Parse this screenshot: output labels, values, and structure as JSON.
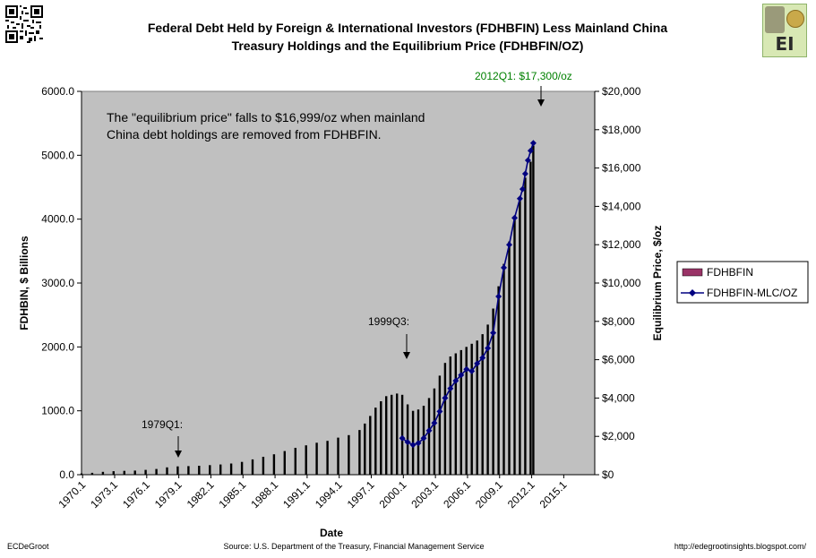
{
  "footer": {
    "left": "ECDeGroot",
    "source": "Source:  U.S. Department of the Treasury, Financial Management Service",
    "url": "http://edegrootinsights.blogspot.com/"
  },
  "logo": {
    "text": "EI"
  },
  "colors": {
    "plot_background": "#c0c0c0",
    "bar": "#000000",
    "line": "#000080",
    "legend_bar_fill": "#993366",
    "title": "#000000",
    "peak_annotation": "#008000"
  },
  "annotations": {
    "note_line1": "The \"equilibrium price\" falls to $16,999/oz when mainland",
    "note_line2": "China debt holdings are removed from FDHBFIN.",
    "a1979": "1979Q1:",
    "a1999": "1999Q3:",
    "a2012": "2012Q1: $17,300/oz"
  },
  "chart_data": {
    "type": "bar",
    "title": "Federal Debt Held by Foreign & International Investors (FDHBFIN) Less Mainland China Treasury Holdings and the Equilibrium Price (FDHBFIN/OZ)",
    "title_lines": [
      "Federal Debt Held by Foreign & International Investors (FDHBFIN) Less Mainland China",
      "Treasury Holdings and the Equilibrium Price (FDHBFIN/OZ)"
    ],
    "xlabel": "Date",
    "ylabel": "FDHBIN, $ Billions",
    "y2label": "Equilibrium Price, $/oz",
    "ylim": [
      0,
      6000
    ],
    "y2lim": [
      0,
      20000
    ],
    "y_ticks": [
      "0.0",
      "1000.0",
      "2000.0",
      "3000.0",
      "4000.0",
      "5000.0",
      "6000.0"
    ],
    "y2_ticks": [
      "$0",
      "$2,000",
      "$4,000",
      "$6,000",
      "$8,000",
      "$10,000",
      "$12,000",
      "$14,000",
      "$16,000",
      "$18,000",
      "$20,000"
    ],
    "x_ticks": [
      "1970.1",
      "1973.1",
      "1976.1",
      "1979.1",
      "1982.1",
      "1985.1",
      "1988.1",
      "1991.1",
      "1994.1",
      "1997.1",
      "2000.1",
      "2003.1",
      "2006.1",
      "2009.1",
      "2012.1",
      "2015.1"
    ],
    "x_range": [
      1970.0,
      2018.0
    ],
    "grid": false,
    "legend_position": "right",
    "series": [
      {
        "name": "FDHBFIN",
        "kind": "bar",
        "axis": "left",
        "x": [
          1970.0,
          1971.0,
          1972.0,
          1973.0,
          1974.0,
          1975.0,
          1976.0,
          1977.0,
          1978.0,
          1979.0,
          1980.0,
          1981.0,
          1982.0,
          1983.0,
          1984.0,
          1985.0,
          1986.0,
          1987.0,
          1988.0,
          1989.0,
          1990.0,
          1991.0,
          1992.0,
          1993.0,
          1994.0,
          1995.0,
          1996.0,
          1996.5,
          1997.0,
          1997.5,
          1998.0,
          1998.5,
          1999.0,
          1999.5,
          2000.0,
          2000.5,
          2001.0,
          2001.5,
          2002.0,
          2002.5,
          2003.0,
          2003.5,
          2004.0,
          2004.5,
          2005.0,
          2005.5,
          2006.0,
          2006.5,
          2007.0,
          2007.5,
          2008.0,
          2008.5,
          2009.0,
          2009.5,
          2010.0,
          2010.5,
          2011.0,
          2011.5,
          2012.0,
          2012.25
        ],
        "values": [
          20,
          30,
          45,
          55,
          60,
          65,
          75,
          90,
          115,
          130,
          135,
          140,
          150,
          160,
          175,
          200,
          240,
          280,
          320,
          370,
          420,
          460,
          500,
          530,
          580,
          620,
          700,
          800,
          920,
          1050,
          1150,
          1230,
          1250,
          1270,
          1250,
          1100,
          1000,
          1020,
          1080,
          1200,
          1350,
          1550,
          1750,
          1850,
          1900,
          1950,
          2000,
          2050,
          2100,
          2200,
          2350,
          2600,
          2950,
          3300,
          3650,
          4000,
          4350,
          4650,
          4900,
          5150
        ]
      },
      {
        "name": "FDHBFIN-MLC/OZ",
        "kind": "line",
        "axis": "right",
        "x": [
          2000.0,
          2000.5,
          2001.0,
          2001.5,
          2002.0,
          2002.5,
          2003.0,
          2003.5,
          2004.0,
          2004.5,
          2005.0,
          2005.5,
          2006.0,
          2006.5,
          2007.0,
          2007.5,
          2008.0,
          2008.5,
          2009.0,
          2009.5,
          2010.0,
          2010.5,
          2011.0,
          2011.25,
          2011.5,
          2011.75,
          2012.0,
          2012.25
        ],
        "values": [
          1900,
          1700,
          1550,
          1650,
          1900,
          2300,
          2700,
          3300,
          4000,
          4500,
          4900,
          5200,
          5500,
          5400,
          5800,
          6100,
          6600,
          7400,
          9300,
          10800,
          12000,
          13400,
          14400,
          14900,
          15700,
          16400,
          16900,
          17300
        ]
      }
    ]
  }
}
